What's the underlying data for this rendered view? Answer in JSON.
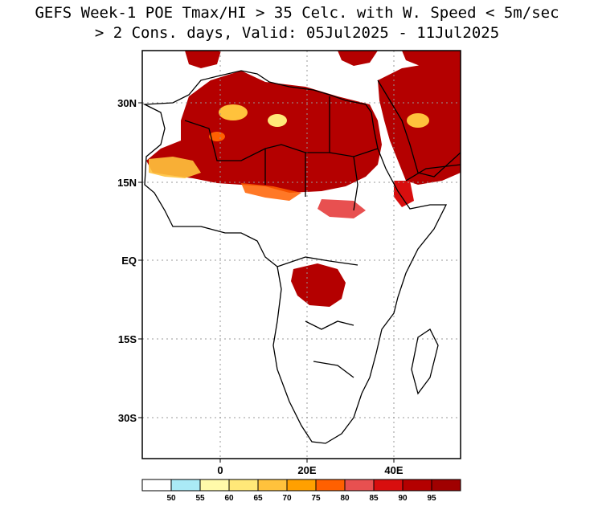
{
  "title": {
    "line1": "GEFS Week-1 POE Tmax/HI > 35 Celc. with W. Speed < 5m/sec",
    "line2": "> 2 Cons. days, Valid: 05Jul2025 - 11Jul2025"
  },
  "axes": {
    "lat_labels": [
      "30N",
      "15N",
      "EQ",
      "15S",
      "30S"
    ],
    "lon_labels": [
      "0",
      "20E",
      "40E"
    ]
  },
  "colorbar": {
    "labels": [
      "50",
      "55",
      "60",
      "65",
      "70",
      "75",
      "80",
      "85",
      "90",
      "95"
    ],
    "colors": [
      "#ffffff",
      "#aaeaf6",
      "#fffaaa",
      "#ffe878",
      "#ffc23c",
      "#ffa000",
      "#ff6000",
      "#e85050",
      "#d80e0e",
      "#b40000",
      "#a00000"
    ]
  },
  "map": {
    "region": "Africa",
    "land_fill": "#ffffff",
    "border_color": "#000000",
    "grid_style": "dotted",
    "dominant_color": "#b40000"
  }
}
